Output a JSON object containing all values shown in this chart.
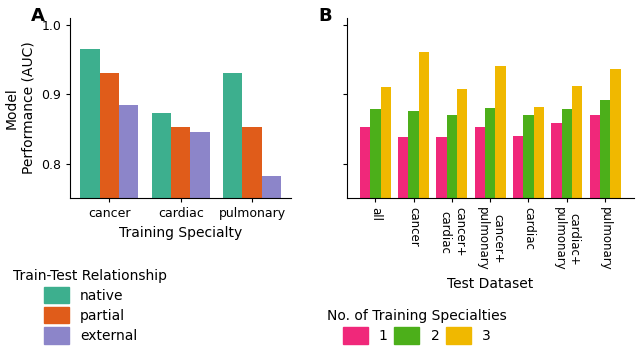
{
  "panel_A": {
    "categories": [
      "cancer",
      "cardiac",
      "pulmonary"
    ],
    "native": [
      0.965,
      0.873,
      0.93
    ],
    "partial": [
      0.93,
      0.852,
      0.852
    ],
    "external": [
      0.884,
      0.845,
      0.782
    ],
    "native_color": "#3daf8e",
    "partial_color": "#e05c1a",
    "external_color": "#8c85c9",
    "ylabel": "Model\nPerformance (AUC)",
    "xlabel": "Training Specialty",
    "ylim": [
      0.75,
      1.01
    ],
    "yticks": [
      0.8,
      0.9,
      1.0
    ],
    "legend_title": "Train-Test Relationship",
    "legend_labels": [
      "native",
      "partial",
      "external"
    ]
  },
  "panel_B": {
    "categories": [
      "all",
      "cancer",
      "cancer+\ncardiac",
      "cancer+\npulmonary",
      "cardiac",
      "cardiac+\npulmonary",
      "pulmonary"
    ],
    "n1": [
      0.852,
      0.838,
      0.838,
      0.852,
      0.84,
      0.858,
      0.87
    ],
    "n2": [
      0.878,
      0.876,
      0.87,
      0.88,
      0.87,
      0.878,
      0.892
    ],
    "n3": [
      0.91,
      0.96,
      0.908,
      0.94,
      0.882,
      0.912,
      0.936
    ],
    "color1": "#f0287a",
    "color2": "#4caf1a",
    "color3": "#f0b800",
    "xlabel": "Test Dataset",
    "legend_title": "No. of Training Specialties",
    "legend_labels": [
      "1",
      "2",
      "3"
    ]
  },
  "background_color": "#ffffff",
  "label_fontsize": 10,
  "tick_fontsize": 9,
  "legend_fontsize": 10
}
